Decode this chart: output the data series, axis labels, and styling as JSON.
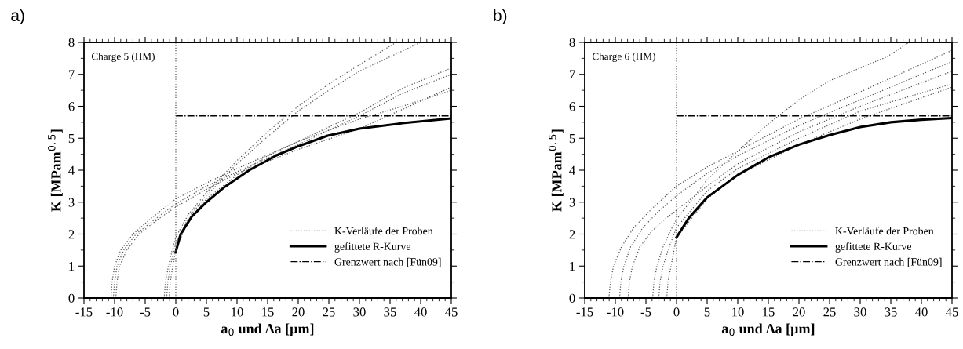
{
  "chart_data": [
    {
      "type": "line",
      "xlabel": "a$_{0}$ und Δa [µm]",
      "ylabel": "K [MPam$^{0,5}$]",
      "annotations": [
        "a)",
        "Charge 5 (HM)"
      ],
      "xlim": [
        -15,
        45
      ],
      "xticks": [
        -15,
        -10,
        -5,
        0,
        5,
        10,
        15,
        20,
        25,
        30,
        35,
        40,
        45
      ],
      "ylim": [
        0,
        8
      ],
      "yticks": [
        0,
        1,
        2,
        3,
        4,
        5,
        6,
        7,
        8
      ],
      "legend": "lower right",
      "grid": false,
      "ref_lines": [
        {
          "axis": "x",
          "value": 0,
          "color": "#555555",
          "line_style": "dotted"
        }
      ],
      "series": [
        {
          "name": "K-Verläufe der Proben",
          "color": "#555555",
          "line_style": "dotted",
          "x": [
            -10.6,
            -10.4,
            -10,
            -9,
            -7,
            -4,
            0,
            5,
            10,
            20,
            30,
            37,
            45
          ],
          "values": [
            0,
            0.5,
            1.0,
            1.5,
            2.0,
            2.5,
            3.1,
            3.6,
            4.05,
            4.9,
            5.8,
            6.56,
            7.2
          ]
        },
        {
          "color": "#555555",
          "line_style": "dotted",
          "x": [
            -10.2,
            -10,
            -9.6,
            -8.5,
            -6.5,
            -3.5,
            0,
            5,
            10,
            20,
            30,
            37,
            45
          ],
          "values": [
            0,
            0.5,
            1.0,
            1.5,
            2.0,
            2.45,
            2.95,
            3.5,
            3.95,
            4.8,
            5.7,
            6.4,
            7.0
          ]
        },
        {
          "color": "#555555",
          "line_style": "dotted",
          "x": [
            -9.8,
            -9.6,
            -9.2,
            -8,
            -6,
            -3,
            0,
            5,
            10,
            20,
            30,
            37,
            45
          ],
          "values": [
            0,
            0.5,
            1.0,
            1.5,
            2.0,
            2.45,
            2.85,
            3.4,
            3.9,
            4.65,
            5.3,
            5.9,
            6.6
          ]
        },
        {
          "color": "#555555",
          "line_style": "dotted",
          "x": [
            -1.9,
            -1.7,
            -1.2,
            -0.6,
            0,
            2,
            5,
            10,
            15,
            20,
            25,
            30,
            36
          ],
          "values": [
            0,
            0.5,
            1.0,
            1.5,
            1.9,
            2.6,
            3.3,
            4.3,
            5.2,
            6.0,
            6.7,
            7.3,
            8.0
          ]
        },
        {
          "color": "#555555",
          "line_style": "dotted",
          "x": [
            -1.5,
            -1.3,
            -0.9,
            -0.3,
            0,
            2,
            5,
            10,
            15,
            20,
            25,
            30,
            40
          ],
          "values": [
            0,
            0.5,
            1.0,
            1.5,
            1.7,
            2.5,
            3.2,
            4.2,
            5.05,
            5.85,
            6.5,
            7.1,
            8.0
          ]
        },
        {
          "color": "#555555",
          "line_style": "dotted",
          "x": [
            -1.1,
            -0.9,
            -0.5,
            0,
            2,
            5,
            10,
            15,
            20,
            30,
            37,
            45
          ],
          "values": [
            0,
            0.5,
            1.0,
            1.5,
            2.4,
            3.1,
            3.85,
            4.45,
            4.9,
            5.6,
            6.0,
            6.5
          ]
        },
        {
          "name": "gefittete R-Kurve",
          "color": "#000000",
          "line_style": "solid",
          "x": [
            0,
            0.8,
            2.6,
            5,
            8,
            12,
            16.4,
            20,
            24.8,
            30,
            37,
            45
          ],
          "values": [
            1.45,
            2.0,
            2.55,
            3.0,
            3.48,
            4.0,
            4.46,
            4.75,
            5.08,
            5.3,
            5.47,
            5.62
          ]
        },
        {
          "name": "Grenzwert nach [Fün09]",
          "color": "#000000",
          "line_style": "dashdot",
          "x": [
            0,
            45
          ],
          "values": [
            5.7,
            5.7
          ]
        }
      ]
    },
    {
      "type": "line",
      "xlabel": "a$_{0}$ und Δa [µm]",
      "ylabel": "K [MPam$^{0,5}$]",
      "annotations": [
        "b)",
        "Charge 6 (HM)"
      ],
      "xlim": [
        -15,
        45
      ],
      "xticks": [
        -15,
        -10,
        -5,
        0,
        5,
        10,
        15,
        20,
        25,
        30,
        35,
        40,
        45
      ],
      "ylim": [
        0,
        8
      ],
      "yticks": [
        0,
        1,
        2,
        3,
        4,
        5,
        6,
        7,
        8
      ],
      "legend": "lower right",
      "grid": false,
      "ref_lines": [
        {
          "axis": "x",
          "value": 0,
          "color": "#555555",
          "line_style": "dotted"
        }
      ],
      "series": [
        {
          "name": "K-Verläufe der Proben",
          "color": "#555555",
          "line_style": "dotted",
          "x": [
            -11.05,
            -10.8,
            -10.3,
            -9,
            -7,
            -4,
            0,
            5,
            10,
            20,
            30,
            45
          ],
          "values": [
            0,
            0.5,
            1.0,
            1.6,
            2.2,
            2.8,
            3.5,
            4.1,
            4.6,
            5.6,
            6.45,
            7.75
          ]
        },
        {
          "color": "#555555",
          "line_style": "dotted",
          "x": [
            -9.3,
            -9.1,
            -8.6,
            -7.5,
            -5.5,
            -3,
            0,
            5,
            10,
            20,
            30,
            45
          ],
          "values": [
            0,
            0.5,
            1.0,
            1.6,
            2.2,
            2.7,
            3.2,
            3.9,
            4.45,
            5.4,
            6.2,
            7.4
          ]
        },
        {
          "color": "#555555",
          "line_style": "dotted",
          "x": [
            -7.9,
            -7.7,
            -7.2,
            -6,
            -4,
            -2,
            0,
            5,
            10,
            20,
            30,
            45
          ],
          "values": [
            0,
            0.5,
            1.0,
            1.6,
            2.1,
            2.45,
            2.75,
            3.5,
            4.2,
            5.2,
            6.0,
            7.1
          ]
        },
        {
          "color": "#555555",
          "line_style": "dotted",
          "x": [
            -3.9,
            -3.7,
            -3.2,
            -2.2,
            -1,
            0,
            5,
            10,
            15,
            20,
            25,
            34.4,
            38
          ],
          "values": [
            0,
            0.5,
            1.0,
            1.6,
            2.1,
            2.46,
            3.7,
            4.6,
            5.45,
            6.2,
            6.8,
            7.55,
            8.0
          ]
        },
        {
          "color": "#555555",
          "line_style": "dotted",
          "x": [
            -2.9,
            -2.7,
            -2.2,
            -1.2,
            0,
            5,
            10,
            20,
            30,
            45
          ],
          "values": [
            0,
            0.5,
            1.0,
            1.6,
            2.2,
            3.35,
            4.05,
            5.0,
            5.85,
            6.7
          ]
        },
        {
          "color": "#555555",
          "line_style": "dotted",
          "x": [
            -1.6,
            -1.4,
            -0.9,
            0,
            5,
            10,
            20,
            30,
            45
          ],
          "values": [
            0,
            0.5,
            1.0,
            1.9,
            3.1,
            3.85,
            4.8,
            5.6,
            6.6
          ]
        },
        {
          "name": "gefittete R-Kurve",
          "color": "#000000",
          "line_style": "solid",
          "x": [
            0,
            2,
            5,
            10,
            15,
            20,
            25,
            30,
            35,
            40,
            45
          ],
          "values": [
            1.9,
            2.5,
            3.15,
            3.85,
            4.4,
            4.8,
            5.1,
            5.35,
            5.5,
            5.58,
            5.63
          ]
        },
        {
          "name": "Grenzwert nach [Fün09]",
          "color": "#000000",
          "line_style": "dashdot",
          "x": [
            0,
            45
          ],
          "values": [
            5.7,
            5.7
          ]
        }
      ]
    }
  ]
}
